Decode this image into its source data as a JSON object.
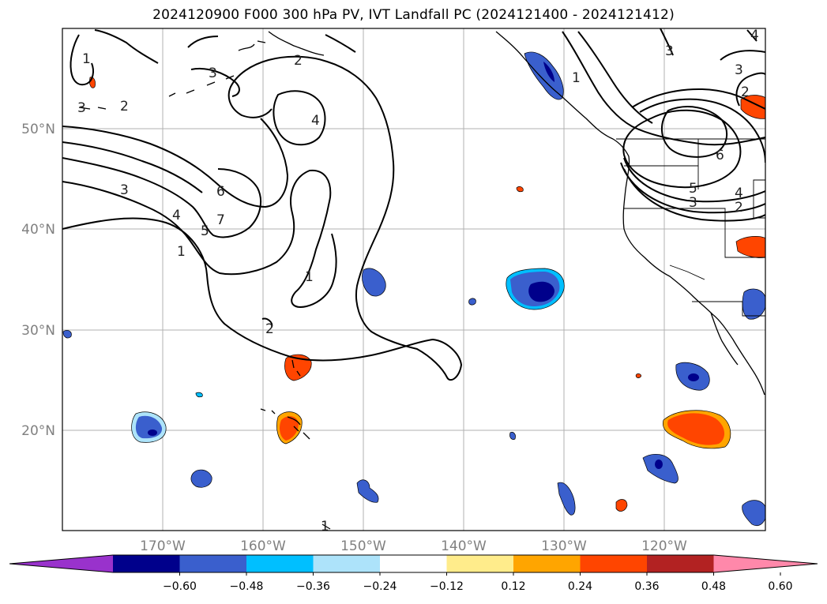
{
  "title": "2024120900 F000 300 hPa PV, IVT Landfall PC (2024121400 - 2024121412)",
  "lon_labels": [
    "170°W",
    "160°W",
    "150°W",
    "140°W",
    "130°W",
    "120°W"
  ],
  "lat_labels": [
    "50°N",
    "40°N",
    "30°N",
    "20°N"
  ],
  "contour_labels": [
    "1",
    "2",
    "3",
    "4",
    "5",
    "6",
    "7"
  ],
  "colorbar": {
    "ticks": [
      "−0.60",
      "−0.48",
      "−0.36",
      "−0.24",
      "−0.12",
      "0.12",
      "0.24",
      "0.36",
      "0.48",
      "0.60"
    ],
    "colors": [
      "#9932CC",
      "#00008B",
      "#3A5FCD",
      "#00BFFF",
      "#ADE3FA",
      "#FFFFFF",
      "#FFEC8B",
      "#FFA500",
      "#FF4500",
      "#B22222",
      "#FF88AA"
    ]
  }
}
